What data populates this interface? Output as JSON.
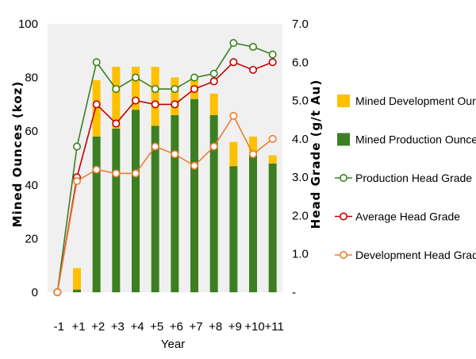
{
  "chart_data": {
    "type": "bar",
    "stacked": true,
    "xlabel": "Year",
    "ylabel_left": "Mined Ounces (koz)",
    "ylabel_right": "Head Grade (g/t Au)",
    "ylim_left": [
      0,
      100
    ],
    "ylim_right": [
      0,
      7
    ],
    "left_ticks": [
      "0",
      "20",
      "40",
      "60",
      "80",
      "100"
    ],
    "right_ticks": [
      "-",
      "1.0",
      "2.0",
      "3.0",
      "4.0",
      "5.0",
      "6.0",
      "7.0"
    ],
    "categories": [
      "-1",
      "+1",
      "+2",
      "+3",
      "+4",
      "+5",
      "+6",
      "+7",
      "+8",
      "+9",
      "+10",
      "+11"
    ],
    "bar_series": [
      {
        "name": "Mined Production Ounces",
        "color": "#3c7f23",
        "values": [
          0,
          1,
          58,
          61,
          68,
          62,
          66,
          72,
          66,
          47,
          51,
          48
        ]
      },
      {
        "name": "Mined Development Ounces",
        "color": "#ffc000",
        "values": [
          0,
          8,
          21,
          23,
          16,
          22,
          14,
          8,
          8,
          9,
          7,
          3
        ]
      }
    ],
    "line_series": [
      {
        "name": "Production Head Grade",
        "color": "#3c7f23",
        "axis": "right",
        "values": [
          0.0,
          3.8,
          6.0,
          5.3,
          5.6,
          5.3,
          5.3,
          5.6,
          5.7,
          6.5,
          6.4,
          6.2
        ]
      },
      {
        "name": "Average Head Grade",
        "color": "#c00000",
        "axis": "right",
        "values": [
          0.0,
          3.0,
          4.9,
          4.4,
          5.0,
          4.9,
          4.9,
          5.3,
          5.5,
          6.0,
          5.8,
          6.0
        ]
      },
      {
        "name": "Development Head Grade",
        "color": "#ed7d31",
        "axis": "right",
        "values": [
          0.0,
          2.9,
          3.2,
          3.1,
          3.1,
          3.8,
          3.6,
          3.3,
          3.8,
          4.6,
          3.6,
          4.0
        ]
      }
    ],
    "legend": [
      {
        "label": "Mined Development Ounces",
        "kind": "bar",
        "color": "#ffc000"
      },
      {
        "label": "Mined Production Ounces",
        "kind": "bar",
        "color": "#3c7f23"
      },
      {
        "label": "Production Head Grade",
        "kind": "line",
        "color": "#3c7f23"
      },
      {
        "label": "Average Head Grade",
        "kind": "line",
        "color": "#c00000"
      },
      {
        "label": "Development Head Grade",
        "kind": "line",
        "color": "#ed7d31"
      }
    ],
    "legend_position": "right",
    "plot_background": "#f0f0f0"
  }
}
